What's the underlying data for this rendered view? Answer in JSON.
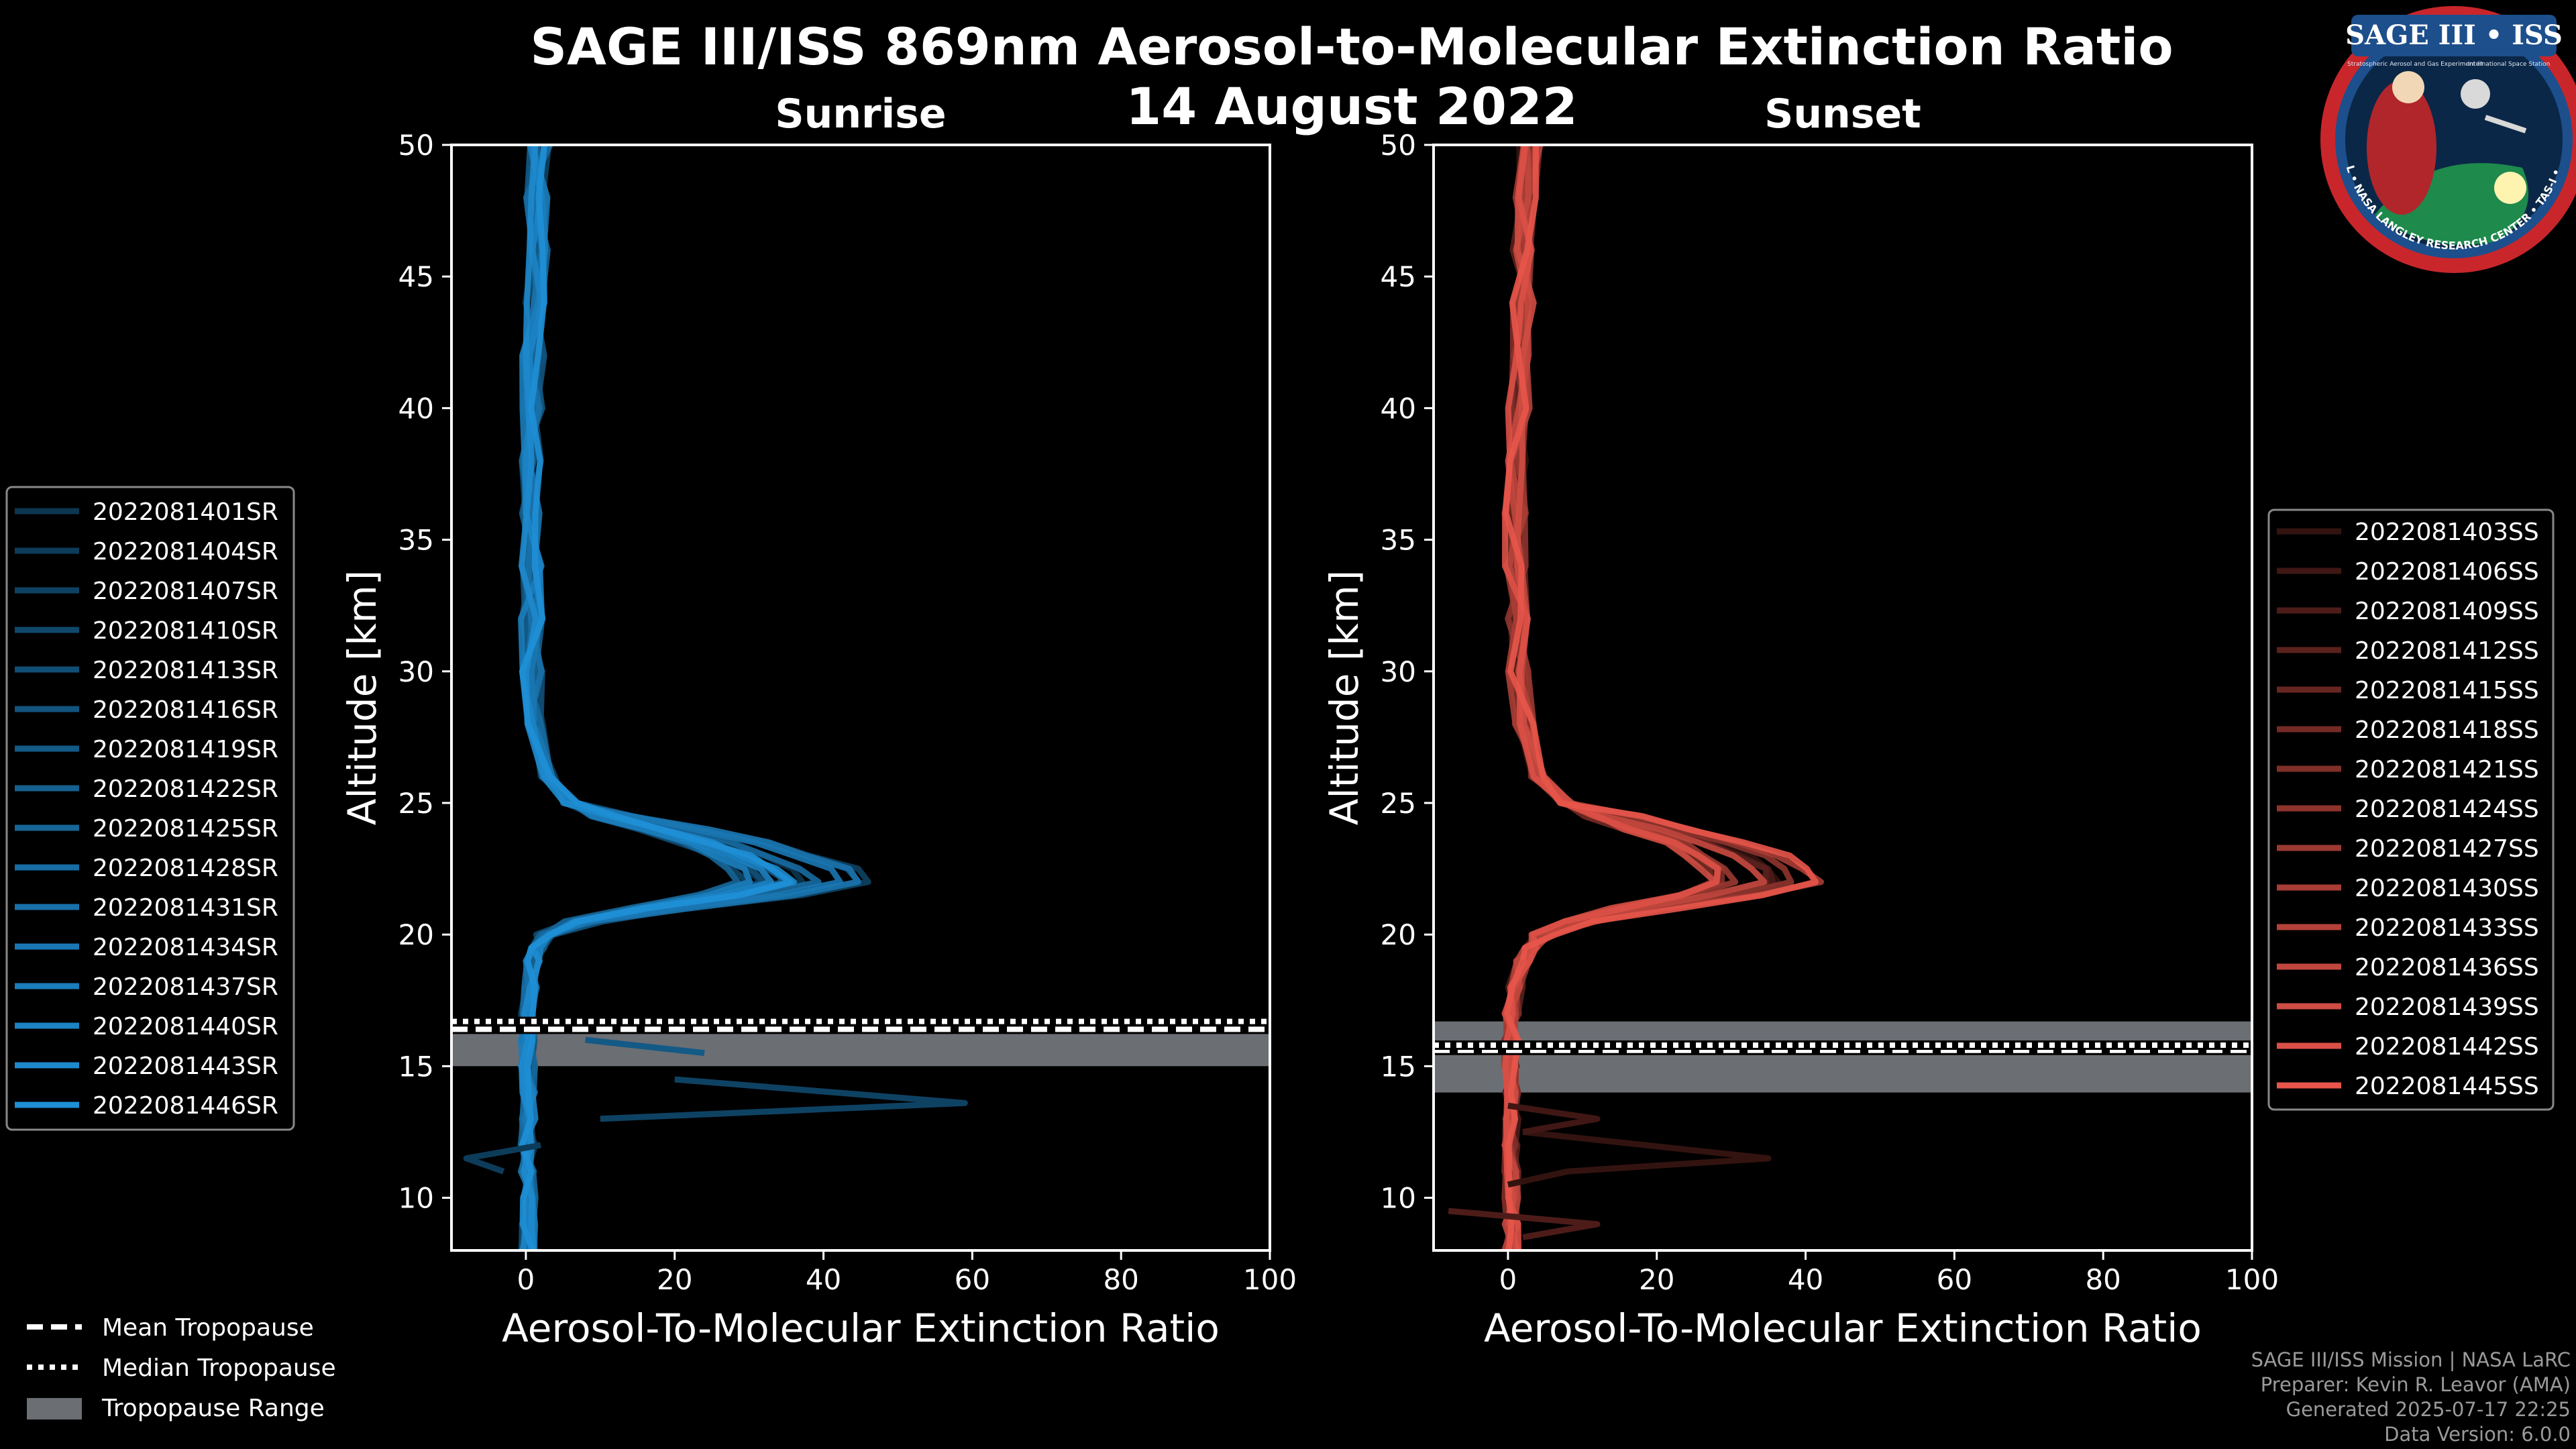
{
  "title": "SAGE III/ISS 869nm Aerosol-to-Molecular Extinction Ratio",
  "date": "14 August 2022",
  "logo": {
    "top_text": "SAGE III • ISS",
    "subtitle": "Stratospheric Aerosol and Gas Experiment III",
    "subtitle2": "International Space Station",
    "ring_text": "BALL • NASA LANGLEY RESEARCH CENTER • TAS-I • ESA"
  },
  "credits": {
    "line1": "SAGE III/ISS Mission | NASA LaRC",
    "line2": "Preparer: Kevin R. Leavor (AMA)",
    "line3": "Generated 2025-07-17 22:25",
    "line4": "Data Version: 6.0.0"
  },
  "tropopause_legend": {
    "mean": "Mean Tropopause",
    "median": "Median Tropopause",
    "range": "Tropopause Range"
  },
  "colors": {
    "sunrise": "#1f8fd6",
    "sunset": "#e8554a",
    "range": "#6b6e73"
  },
  "chart_data": [
    {
      "type": "line",
      "panel": "sunrise",
      "title": "Sunrise",
      "xlabel": "Aerosol-To-Molecular Extinction Ratio",
      "ylabel": "Altitude [km]",
      "xlim": [
        -10,
        100
      ],
      "ylim": [
        8,
        50
      ],
      "xticks": [
        0,
        20,
        40,
        60,
        80,
        100
      ],
      "yticks": [
        10,
        15,
        20,
        25,
        30,
        35,
        40,
        45,
        50
      ],
      "tropopause": {
        "mean": 16.4,
        "median": 16.7,
        "range": [
          15.0,
          16.8
        ]
      },
      "series": [
        {
          "name": "2022081401SR"
        },
        {
          "name": "2022081404SR"
        },
        {
          "name": "2022081407SR"
        },
        {
          "name": "2022081410SR"
        },
        {
          "name": "2022081413SR"
        },
        {
          "name": "2022081416SR"
        },
        {
          "name": "2022081419SR"
        },
        {
          "name": "2022081422SR"
        },
        {
          "name": "2022081425SR"
        },
        {
          "name": "2022081428SR"
        },
        {
          "name": "2022081431SR"
        },
        {
          "name": "2022081434SR"
        },
        {
          "name": "2022081437SR"
        },
        {
          "name": "2022081440SR"
        },
        {
          "name": "2022081443SR"
        },
        {
          "name": "2022081446SR"
        }
      ],
      "profile": {
        "alt": [
          50,
          48,
          46,
          44,
          42,
          40,
          38,
          36,
          34,
          32,
          30,
          28,
          26,
          25,
          24.5,
          24,
          23.5,
          23,
          22.5,
          22,
          21.5,
          21,
          20.5,
          20,
          19.5,
          19,
          18,
          17,
          16,
          15,
          14,
          13,
          12,
          11,
          10,
          9,
          8
        ],
        "ratio": [
          2,
          1.5,
          1.5,
          1.2,
          1,
          1,
          0.8,
          0.6,
          0.6,
          0.8,
          1,
          1.5,
          3,
          6,
          12,
          20,
          27,
          32,
          36,
          38,
          30,
          18,
          8,
          3,
          1.5,
          1,
          0.5,
          0.3,
          0.3,
          0.3,
          0.3,
          0.3,
          0.3,
          0.3,
          0.3,
          0.3,
          0.3
        ]
      },
      "outliers": [
        {
          "name": "2022081419SR",
          "alt": [
            16.0,
            15.5
          ],
          "ratio": [
            8,
            24
          ]
        },
        {
          "name": "2022081407SR",
          "alt": [
            14.5,
            13.6,
            13.0
          ],
          "ratio": [
            20,
            59,
            10
          ]
        },
        {
          "name": "2022081404SR",
          "alt": [
            12.0,
            11.5,
            11.0
          ],
          "ratio": [
            2,
            -8,
            -3
          ]
        }
      ]
    },
    {
      "type": "line",
      "panel": "sunset",
      "title": "Sunset",
      "xlabel": "Aerosol-To-Molecular Extinction Ratio",
      "ylabel": "Altitude [km]",
      "xlim": [
        -10,
        100
      ],
      "ylim": [
        8,
        50
      ],
      "xticks": [
        0,
        20,
        40,
        60,
        80,
        100
      ],
      "yticks": [
        10,
        15,
        20,
        25,
        30,
        35,
        40,
        45,
        50
      ],
      "tropopause": {
        "mean": 15.6,
        "median": 15.8,
        "range": [
          14.0,
          16.7
        ]
      },
      "series": [
        {
          "name": "2022081403SS"
        },
        {
          "name": "2022081406SS"
        },
        {
          "name": "2022081409SS"
        },
        {
          "name": "2022081412SS"
        },
        {
          "name": "2022081415SS"
        },
        {
          "name": "2022081418SS"
        },
        {
          "name": "2022081421SS"
        },
        {
          "name": "2022081424SS"
        },
        {
          "name": "2022081427SS"
        },
        {
          "name": "2022081430SS"
        },
        {
          "name": "2022081433SS"
        },
        {
          "name": "2022081436SS"
        },
        {
          "name": "2022081439SS"
        },
        {
          "name": "2022081442SS"
        },
        {
          "name": "2022081445SS"
        }
      ],
      "profile": {
        "alt": [
          50,
          48,
          46,
          44,
          42,
          40,
          38,
          36,
          34,
          32,
          30,
          28,
          26,
          25,
          24.5,
          24,
          23.5,
          23,
          22.5,
          22,
          21.5,
          21,
          20.5,
          20,
          19.5,
          19,
          18,
          17,
          16,
          15,
          14,
          13,
          12,
          11,
          10,
          9,
          8
        ],
        "ratio": [
          3,
          2.5,
          2,
          2,
          1.5,
          1.5,
          1.2,
          1,
          1,
          1.2,
          1.5,
          2,
          4,
          8,
          14,
          20,
          26,
          30,
          33,
          34,
          28,
          18,
          10,
          5,
          3,
          2,
          1,
          0.5,
          0.5,
          0.5,
          0.5,
          0.5,
          0.5,
          0.5,
          0.5,
          0.5,
          0.5
        ]
      },
      "outliers": [
        {
          "name": "2022081403SS",
          "alt": [
            12.5,
            11.5,
            11.0,
            10.5
          ],
          "ratio": [
            2,
            35,
            8,
            0
          ]
        },
        {
          "name": "2022081406SS",
          "alt": [
            13.5,
            13.0,
            12.5
          ],
          "ratio": [
            0,
            12,
            2
          ]
        },
        {
          "name": "2022081409SS",
          "alt": [
            9.5,
            9.0,
            8.5
          ],
          "ratio": [
            -8,
            12,
            2
          ]
        }
      ]
    }
  ]
}
